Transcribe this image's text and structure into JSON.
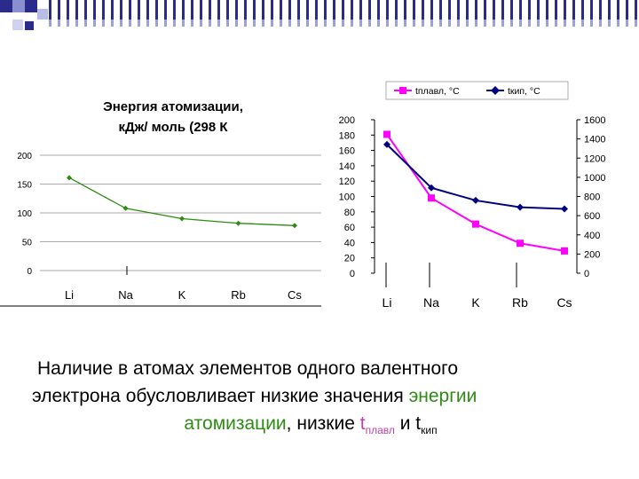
{
  "colors": {
    "deco_dark": "#2b2b8c",
    "deco_light": "#9aa0d8",
    "green_line": "#2e8b14",
    "pink_line": "#ff00ff",
    "navy_line": "#000080",
    "highlight_green": "#2e8b14",
    "highlight_pink": "#c03fa8"
  },
  "chart_data": [
    {
      "type": "line",
      "title": "Энергия атомизации, кДж/ моль (298 К)",
      "title_line1": "Энергия атомизации,",
      "title_line2": "кДж/ моль (298 К",
      "categories": [
        "Li",
        "Na",
        "K",
        "Rb",
        "Cs"
      ],
      "series": [
        {
          "values": [
            161,
            108,
            90,
            82,
            78
          ]
        }
      ],
      "ylim": [
        0,
        200
      ],
      "yticks": [
        "0",
        "50",
        "100",
        "150",
        "200"
      ],
      "grid": true
    },
    {
      "type": "line",
      "categories": [
        "Li",
        "Na",
        "K",
        "Rb",
        "Cs"
      ],
      "series": [
        {
          "name": "tплавл, °C",
          "axis": "left",
          "values": [
            181,
            98,
            64,
            39,
            29
          ]
        },
        {
          "name": "tкип, °C",
          "axis": "right",
          "values": [
            1342,
            890,
            759,
            688,
            671
          ]
        }
      ],
      "ylim_left": [
        0,
        200
      ],
      "ylim_right": [
        0,
        1600
      ],
      "yticks_left": [
        "0",
        "20",
        "40",
        "60",
        "80",
        "100",
        "120",
        "140",
        "160",
        "180",
        "200"
      ],
      "yticks_right": [
        "0",
        "200",
        "400",
        "600",
        "800",
        "1000",
        "1200",
        "1400",
        "1600"
      ],
      "legend": "top"
    }
  ],
  "caption": {
    "line1": "Наличие в атомах элементов одного валентного",
    "line2_a": "электрона обусловливает низкие значения ",
    "line2_b": "энергии",
    "line3_a": "атомизации",
    "line3_b": ", низкие ",
    "line3_t1": "t",
    "line3_sub1": "плавл",
    "line3_c": " и ",
    "line3_t2": "t",
    "line3_sub2": "кип"
  }
}
